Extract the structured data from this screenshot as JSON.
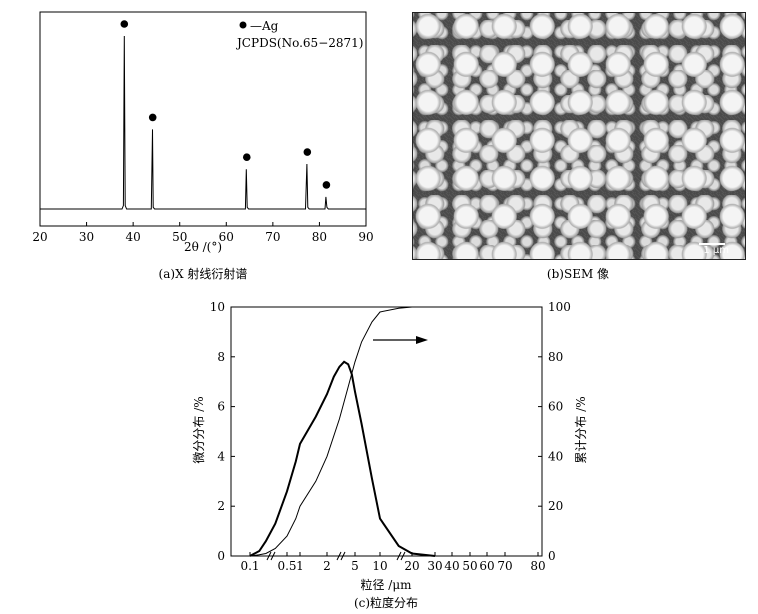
{
  "panel_a": {
    "caption": "(a)X 射线衍射谱",
    "xlabel": "2θ /(°)",
    "legend_marker_label": "—Ag",
    "legend_card": "JCPDS(No.65−2871)"
  },
  "panel_b": {
    "caption": "(b)SEM 像",
    "scale_label": "1 μm"
  },
  "panel_c": {
    "caption": "(c)粒度分布",
    "xlabel": "粒径 /μm",
    "ylabel_left": "微分分布 /%",
    "ylabel_right": "累计分布 /%"
  },
  "chart_data": [
    {
      "type": "line",
      "title": "",
      "xlabel": "2θ /(°)",
      "ylabel": "",
      "xlim": [
        20,
        90
      ],
      "x_ticks": [
        20,
        30,
        40,
        50,
        60,
        70,
        80,
        90
      ],
      "grid": false,
      "legend": "top-right",
      "legend_entries": [
        "—Ag",
        "JCPDS(No.65−2871)"
      ],
      "series": [
        {
          "x": [
            20,
            37.6,
            37.9,
            38.1,
            38.3,
            38.6,
            43.9,
            44.15,
            44.3,
            44.6,
            64.1,
            64.3,
            64.5,
            64.8,
            77.0,
            77.3,
            77.5,
            77.8,
            81.2,
            81.4,
            81.6,
            81.9,
            90
          ],
          "y": [
            0,
            0,
            2,
            100,
            2,
            0,
            0,
            46,
            1,
            0,
            0,
            23,
            1,
            0,
            0,
            26,
            1,
            0,
            0,
            7,
            1,
            0,
            0
          ]
        }
      ],
      "peak_markers_x": [
        38.1,
        44.2,
        64.4,
        77.4,
        81.5
      ],
      "marker": "●"
    },
    {
      "type": "line",
      "title": "",
      "xlabel": "粒径 /μm",
      "ylabel": "微分分布 /%",
      "ylabel_right": "累计分布 /%",
      "x_scale": "log",
      "x_tick_labels": [
        "0.1",
        "0.5",
        "1",
        "2",
        "5",
        "10",
        "20",
        "30",
        "40",
        "50",
        "60",
        "70",
        "80"
      ],
      "ylim_left": [
        0,
        10
      ],
      "ylim_right": [
        0,
        100
      ],
      "y_ticks_left": [
        0,
        2,
        4,
        6,
        8,
        10
      ],
      "y_ticks_right": [
        0,
        20,
        40,
        60,
        80,
        100
      ],
      "grid": false,
      "series": [
        {
          "axis": "left",
          "x": [
            0.1,
            0.15,
            0.2,
            0.3,
            0.5,
            0.8,
            1,
            1.5,
            2,
            2.5,
            3,
            3.5,
            4,
            4.5,
            5,
            6,
            8,
            10,
            15,
            20,
            30
          ],
          "y": [
            0,
            0.2,
            0.6,
            1.3,
            2.6,
            3.8,
            4.5,
            5.6,
            6.5,
            7.2,
            7.6,
            7.8,
            7.7,
            7.3,
            6.6,
            5.3,
            3.1,
            1.5,
            0.4,
            0.1,
            0
          ]
        },
        {
          "axis": "right",
          "x": [
            0.1,
            0.15,
            0.2,
            0.3,
            0.5,
            0.8,
            1,
            1.5,
            2,
            3,
            4,
            5,
            6,
            8,
            10,
            15,
            20,
            30,
            40,
            80
          ],
          "y": [
            0,
            0.5,
            1,
            3,
            8,
            15,
            20,
            30,
            40,
            55,
            68,
            78,
            86,
            94,
            98,
            99.5,
            100,
            100,
            100,
            100
          ]
        }
      ],
      "annotation": "arrow pointing right toward cumulative axis"
    }
  ]
}
